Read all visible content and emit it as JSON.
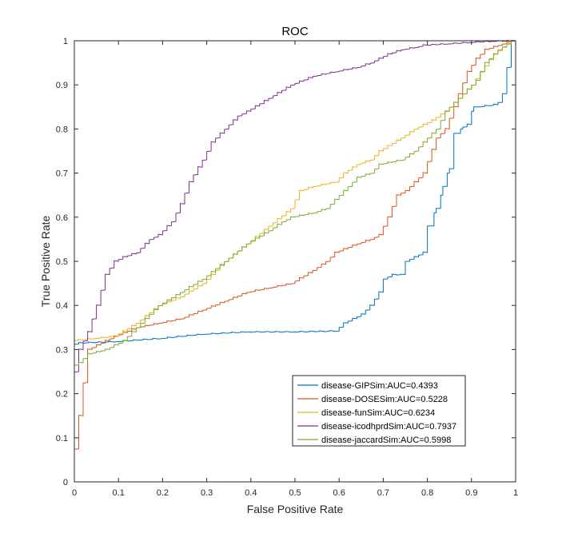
{
  "chart_data": {
    "type": "line",
    "title": "ROC",
    "xlabel": "False Positive Rate",
    "ylabel": "True Positive Rate",
    "xlim": [
      0,
      1
    ],
    "ylim": [
      0,
      1
    ],
    "xticks": [
      "0",
      "0.1",
      "0.2",
      "0.3",
      "0.4",
      "0.5",
      "0.6",
      "0.7",
      "0.8",
      "0.9",
      "1"
    ],
    "yticks": [
      "0",
      "0.1",
      "0.2",
      "0.3",
      "0.4",
      "0.5",
      "0.6",
      "0.7",
      "0.8",
      "0.9",
      "1"
    ],
    "grid": false,
    "legend_position": "bottom-right",
    "series": [
      {
        "name": "disease-GIPSim:AUC=0.4393",
        "color": "#0072BD",
        "points": [
          [
            0,
            0
          ],
          [
            0,
            0.31
          ],
          [
            0.02,
            0.315
          ],
          [
            0.1,
            0.318
          ],
          [
            0.2,
            0.325
          ],
          [
            0.3,
            0.335
          ],
          [
            0.4,
            0.34
          ],
          [
            0.5,
            0.34
          ],
          [
            0.6,
            0.342
          ],
          [
            0.62,
            0.36
          ],
          [
            0.66,
            0.38
          ],
          [
            0.68,
            0.4
          ],
          [
            0.7,
            0.43
          ],
          [
            0.71,
            0.46
          ],
          [
            0.73,
            0.47
          ],
          [
            0.75,
            0.47
          ],
          [
            0.76,
            0.5
          ],
          [
            0.78,
            0.51
          ],
          [
            0.8,
            0.52
          ],
          [
            0.815,
            0.58
          ],
          [
            0.82,
            0.61
          ],
          [
            0.83,
            0.62
          ],
          [
            0.835,
            0.65
          ],
          [
            0.845,
            0.67
          ],
          [
            0.85,
            0.7
          ],
          [
            0.86,
            0.71
          ],
          [
            0.875,
            0.79
          ],
          [
            0.88,
            0.8
          ],
          [
            0.9,
            0.81
          ],
          [
            0.905,
            0.84
          ],
          [
            0.92,
            0.85
          ],
          [
            0.96,
            0.855
          ],
          [
            0.97,
            0.86
          ],
          [
            0.98,
            0.88
          ],
          [
            1,
            1
          ]
        ]
      },
      {
        "name": "disease-DOSESim:AUC=0.5228",
        "color": "#D95319",
        "points": [
          [
            0,
            0
          ],
          [
            0.04,
            0.3
          ],
          [
            0.1,
            0.33
          ],
          [
            0.15,
            0.35
          ],
          [
            0.2,
            0.36
          ],
          [
            0.25,
            0.37
          ],
          [
            0.3,
            0.39
          ],
          [
            0.35,
            0.41
          ],
          [
            0.4,
            0.43
          ],
          [
            0.45,
            0.44
          ],
          [
            0.5,
            0.45
          ],
          [
            0.55,
            0.48
          ],
          [
            0.58,
            0.5
          ],
          [
            0.6,
            0.52
          ],
          [
            0.65,
            0.54
          ],
          [
            0.68,
            0.55
          ],
          [
            0.7,
            0.56
          ],
          [
            0.72,
            0.6
          ],
          [
            0.74,
            0.65
          ],
          [
            0.76,
            0.66
          ],
          [
            0.78,
            0.68
          ],
          [
            0.8,
            0.7
          ],
          [
            0.83,
            0.78
          ],
          [
            0.85,
            0.8
          ],
          [
            0.87,
            0.85
          ],
          [
            0.88,
            0.88
          ],
          [
            0.9,
            0.93
          ],
          [
            0.92,
            0.96
          ],
          [
            0.94,
            0.98
          ],
          [
            0.97,
            0.99
          ],
          [
            1,
            1
          ]
        ]
      },
      {
        "name": "disease-funSim:AUC=0.6234",
        "color": "#EDB120",
        "points": [
          [
            0,
            0
          ],
          [
            0,
            0.32
          ],
          [
            0.05,
            0.325
          ],
          [
            0.1,
            0.33
          ],
          [
            0.15,
            0.36
          ],
          [
            0.2,
            0.4
          ],
          [
            0.25,
            0.42
          ],
          [
            0.3,
            0.45
          ],
          [
            0.35,
            0.5
          ],
          [
            0.4,
            0.54
          ],
          [
            0.45,
            0.58
          ],
          [
            0.5,
            0.62
          ],
          [
            0.52,
            0.66
          ],
          [
            0.55,
            0.67
          ],
          [
            0.6,
            0.68
          ],
          [
            0.62,
            0.7
          ],
          [
            0.65,
            0.72
          ],
          [
            0.68,
            0.73
          ],
          [
            0.7,
            0.75
          ],
          [
            0.75,
            0.78
          ],
          [
            0.78,
            0.8
          ],
          [
            0.82,
            0.82
          ],
          [
            0.85,
            0.84
          ],
          [
            0.88,
            0.87
          ],
          [
            0.91,
            0.9
          ],
          [
            0.93,
            0.93
          ],
          [
            0.96,
            0.97
          ],
          [
            1,
            1
          ]
        ]
      },
      {
        "name": "disease-icodhprdSim:AUC=0.7937",
        "color": "#7E2F8E",
        "points": [
          [
            0,
            0
          ],
          [
            0,
            0.2
          ],
          [
            0.02,
            0.3
          ],
          [
            0.04,
            0.34
          ],
          [
            0.06,
            0.4
          ],
          [
            0.08,
            0.47
          ],
          [
            0.1,
            0.5
          ],
          [
            0.12,
            0.51
          ],
          [
            0.15,
            0.52
          ],
          [
            0.18,
            0.55
          ],
          [
            0.2,
            0.56
          ],
          [
            0.23,
            0.59
          ],
          [
            0.25,
            0.63
          ],
          [
            0.27,
            0.68
          ],
          [
            0.3,
            0.73
          ],
          [
            0.32,
            0.77
          ],
          [
            0.35,
            0.8
          ],
          [
            0.38,
            0.83
          ],
          [
            0.4,
            0.84
          ],
          [
            0.45,
            0.87
          ],
          [
            0.5,
            0.9
          ],
          [
            0.55,
            0.92
          ],
          [
            0.6,
            0.93
          ],
          [
            0.65,
            0.94
          ],
          [
            0.68,
            0.95
          ],
          [
            0.7,
            0.96
          ],
          [
            0.72,
            0.97
          ],
          [
            0.75,
            0.98
          ],
          [
            0.78,
            0.985
          ],
          [
            0.8,
            0.99
          ],
          [
            0.85,
            0.993
          ],
          [
            0.9,
            0.996
          ],
          [
            0.95,
            0.999
          ],
          [
            1,
            1
          ]
        ]
      },
      {
        "name": "disease-jaccardSim:AUC=0.5998",
        "color": "#77AC30",
        "points": [
          [
            0,
            0
          ],
          [
            0,
            0.26
          ],
          [
            0.02,
            0.27
          ],
          [
            0.04,
            0.29
          ],
          [
            0.08,
            0.3
          ],
          [
            0.1,
            0.31
          ],
          [
            0.12,
            0.32
          ],
          [
            0.15,
            0.35
          ],
          [
            0.2,
            0.4
          ],
          [
            0.25,
            0.43
          ],
          [
            0.3,
            0.46
          ],
          [
            0.35,
            0.5
          ],
          [
            0.4,
            0.54
          ],
          [
            0.45,
            0.57
          ],
          [
            0.48,
            0.59
          ],
          [
            0.5,
            0.6
          ],
          [
            0.55,
            0.61
          ],
          [
            0.58,
            0.62
          ],
          [
            0.6,
            0.64
          ],
          [
            0.63,
            0.67
          ],
          [
            0.65,
            0.69
          ],
          [
            0.68,
            0.7
          ],
          [
            0.7,
            0.72
          ],
          [
            0.75,
            0.73
          ],
          [
            0.78,
            0.75
          ],
          [
            0.8,
            0.77
          ],
          [
            0.83,
            0.8
          ],
          [
            0.85,
            0.84
          ],
          [
            0.88,
            0.87
          ],
          [
            0.9,
            0.89
          ],
          [
            0.92,
            0.91
          ],
          [
            0.94,
            0.95
          ],
          [
            0.97,
            0.98
          ],
          [
            1,
            1
          ]
        ]
      }
    ]
  }
}
